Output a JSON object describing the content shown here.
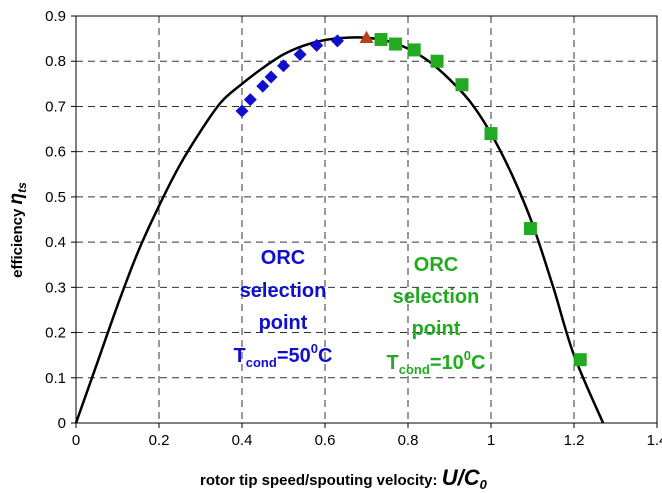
{
  "chart_data": {
    "type": "scatter",
    "xlabel": "rotor tip speed/spouting velocity:",
    "xlabel_symbol": "U/C",
    "xlabel_symbol_sub": "0",
    "ylabel": "efficiency",
    "ylabel_symbol": "η",
    "ylabel_symbol_sub": "ts",
    "xlim": [
      0,
      1.4
    ],
    "ylim": [
      0,
      0.9
    ],
    "xticks": [
      0,
      0.2,
      0.4,
      0.6,
      0.8,
      1,
      1.2,
      1.4
    ],
    "xtick_labels": [
      "0",
      "0.2",
      "0.4",
      "0.6",
      "0.8",
      "1",
      "1.2",
      "1.4"
    ],
    "yticks": [
      0,
      0.1,
      0.2,
      0.3,
      0.4,
      0.5,
      0.6,
      0.7,
      0.8,
      0.9
    ],
    "ytick_labels": [
      "0",
      "0.1",
      "0.2",
      "0.3",
      "0.4",
      "0.5",
      "0.6",
      "0.7",
      "0.8",
      "0.9"
    ],
    "grid": true,
    "curve": {
      "color": "#000000",
      "x": [
        0,
        0.05,
        0.1,
        0.15,
        0.2,
        0.25,
        0.3,
        0.35,
        0.4,
        0.45,
        0.5,
        0.55,
        0.6,
        0.65,
        0.7,
        0.75,
        0.8,
        0.85,
        0.9,
        0.95,
        1.0,
        1.05,
        1.1,
        1.15,
        1.2,
        1.27
      ],
      "y": [
        0,
        0.13,
        0.26,
        0.38,
        0.48,
        0.57,
        0.645,
        0.71,
        0.75,
        0.785,
        0.815,
        0.835,
        0.847,
        0.852,
        0.852,
        0.845,
        0.828,
        0.8,
        0.76,
        0.71,
        0.64,
        0.55,
        0.44,
        0.3,
        0.15,
        0
      ]
    },
    "series": [
      {
        "marker": "diamond",
        "color": "#1010cc",
        "x": [
          0.4,
          0.42,
          0.45,
          0.47,
          0.5,
          0.54,
          0.58,
          0.63
        ],
        "y": [
          0.69,
          0.715,
          0.745,
          0.765,
          0.79,
          0.815,
          0.835,
          0.845
        ]
      },
      {
        "marker": "triangle",
        "color": "#b5421a",
        "x": [
          0.7
        ],
        "y": [
          0.852
        ]
      },
      {
        "marker": "square",
        "color": "#22aa22",
        "x": [
          0.735,
          0.77,
          0.815,
          0.87,
          0.93,
          1.0,
          1.095,
          1.215
        ],
        "y": [
          0.848,
          0.838,
          0.825,
          0.8,
          0.748,
          0.64,
          0.43,
          0.14
        ]
      }
    ],
    "annotations": [
      {
        "color": "#1010cc",
        "lines": [
          "ORC",
          "selection",
          "point"
        ],
        "sub_prefix": "T",
        "sub": "cond",
        "sub_suffix": "=50",
        "sup": "0",
        "unit": "C"
      },
      {
        "color": "#22aa22",
        "lines": [
          "ORC",
          "selection",
          "point"
        ],
        "sub_prefix": "T",
        "sub": "cond",
        "sub_suffix": "=10",
        "sup": "0",
        "unit": "C"
      }
    ]
  }
}
